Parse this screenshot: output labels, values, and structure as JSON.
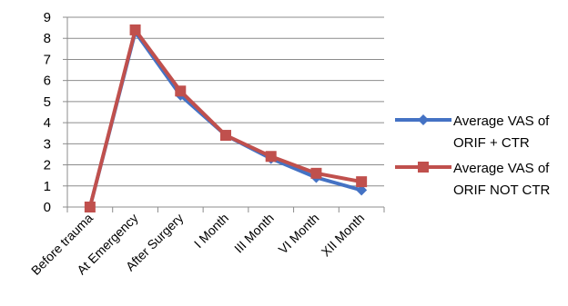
{
  "chart_data": {
    "type": "line",
    "categories": [
      "Before trauma",
      "At Emergency",
      "After Surgery",
      "I Month",
      "III Month",
      "VI Month",
      "XII Month"
    ],
    "series": [
      {
        "name": "Average VAS of ORIF + CTR",
        "legend_lines": [
          "Average VAS of",
          "ORIF + CTR"
        ],
        "color": "#4472C4",
        "marker": "diamond",
        "values": [
          0,
          8.3,
          5.3,
          3.4,
          2.3,
          1.4,
          0.8
        ]
      },
      {
        "name": "Average VAS of ORIF NOT CTR",
        "legend_lines": [
          "Average VAS of",
          "ORIF NOT CTR"
        ],
        "color": "#C0504D",
        "marker": "square",
        "values": [
          0,
          8.4,
          5.5,
          3.4,
          2.4,
          1.6,
          1.2
        ]
      }
    ],
    "ylim": [
      0,
      9
    ],
    "yticks": [
      0,
      1,
      2,
      3,
      4,
      5,
      6,
      7,
      8,
      9
    ],
    "grid": true,
    "legend": "right",
    "title": "",
    "xlabel": "",
    "ylabel": ""
  }
}
